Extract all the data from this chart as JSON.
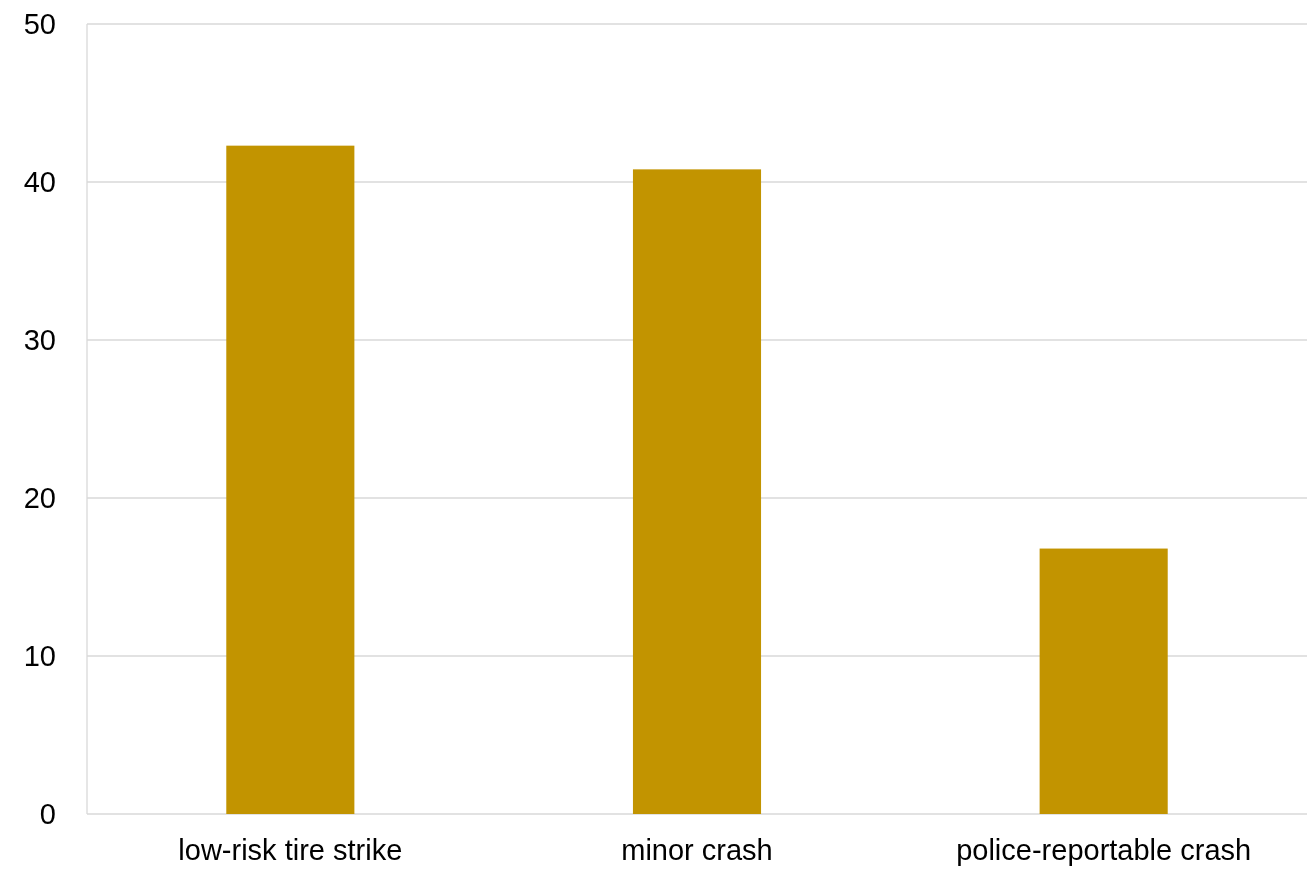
{
  "chart_data": {
    "type": "bar",
    "categories": [
      "low-risk tire strike",
      "minor crash",
      "police-reportable crash"
    ],
    "values": [
      42.3,
      40.8,
      16.8
    ],
    "color": "#c29400",
    "ylim": [
      0,
      50
    ],
    "yticks": [
      0,
      10,
      20,
      30,
      40,
      50
    ],
    "grid": "y"
  }
}
